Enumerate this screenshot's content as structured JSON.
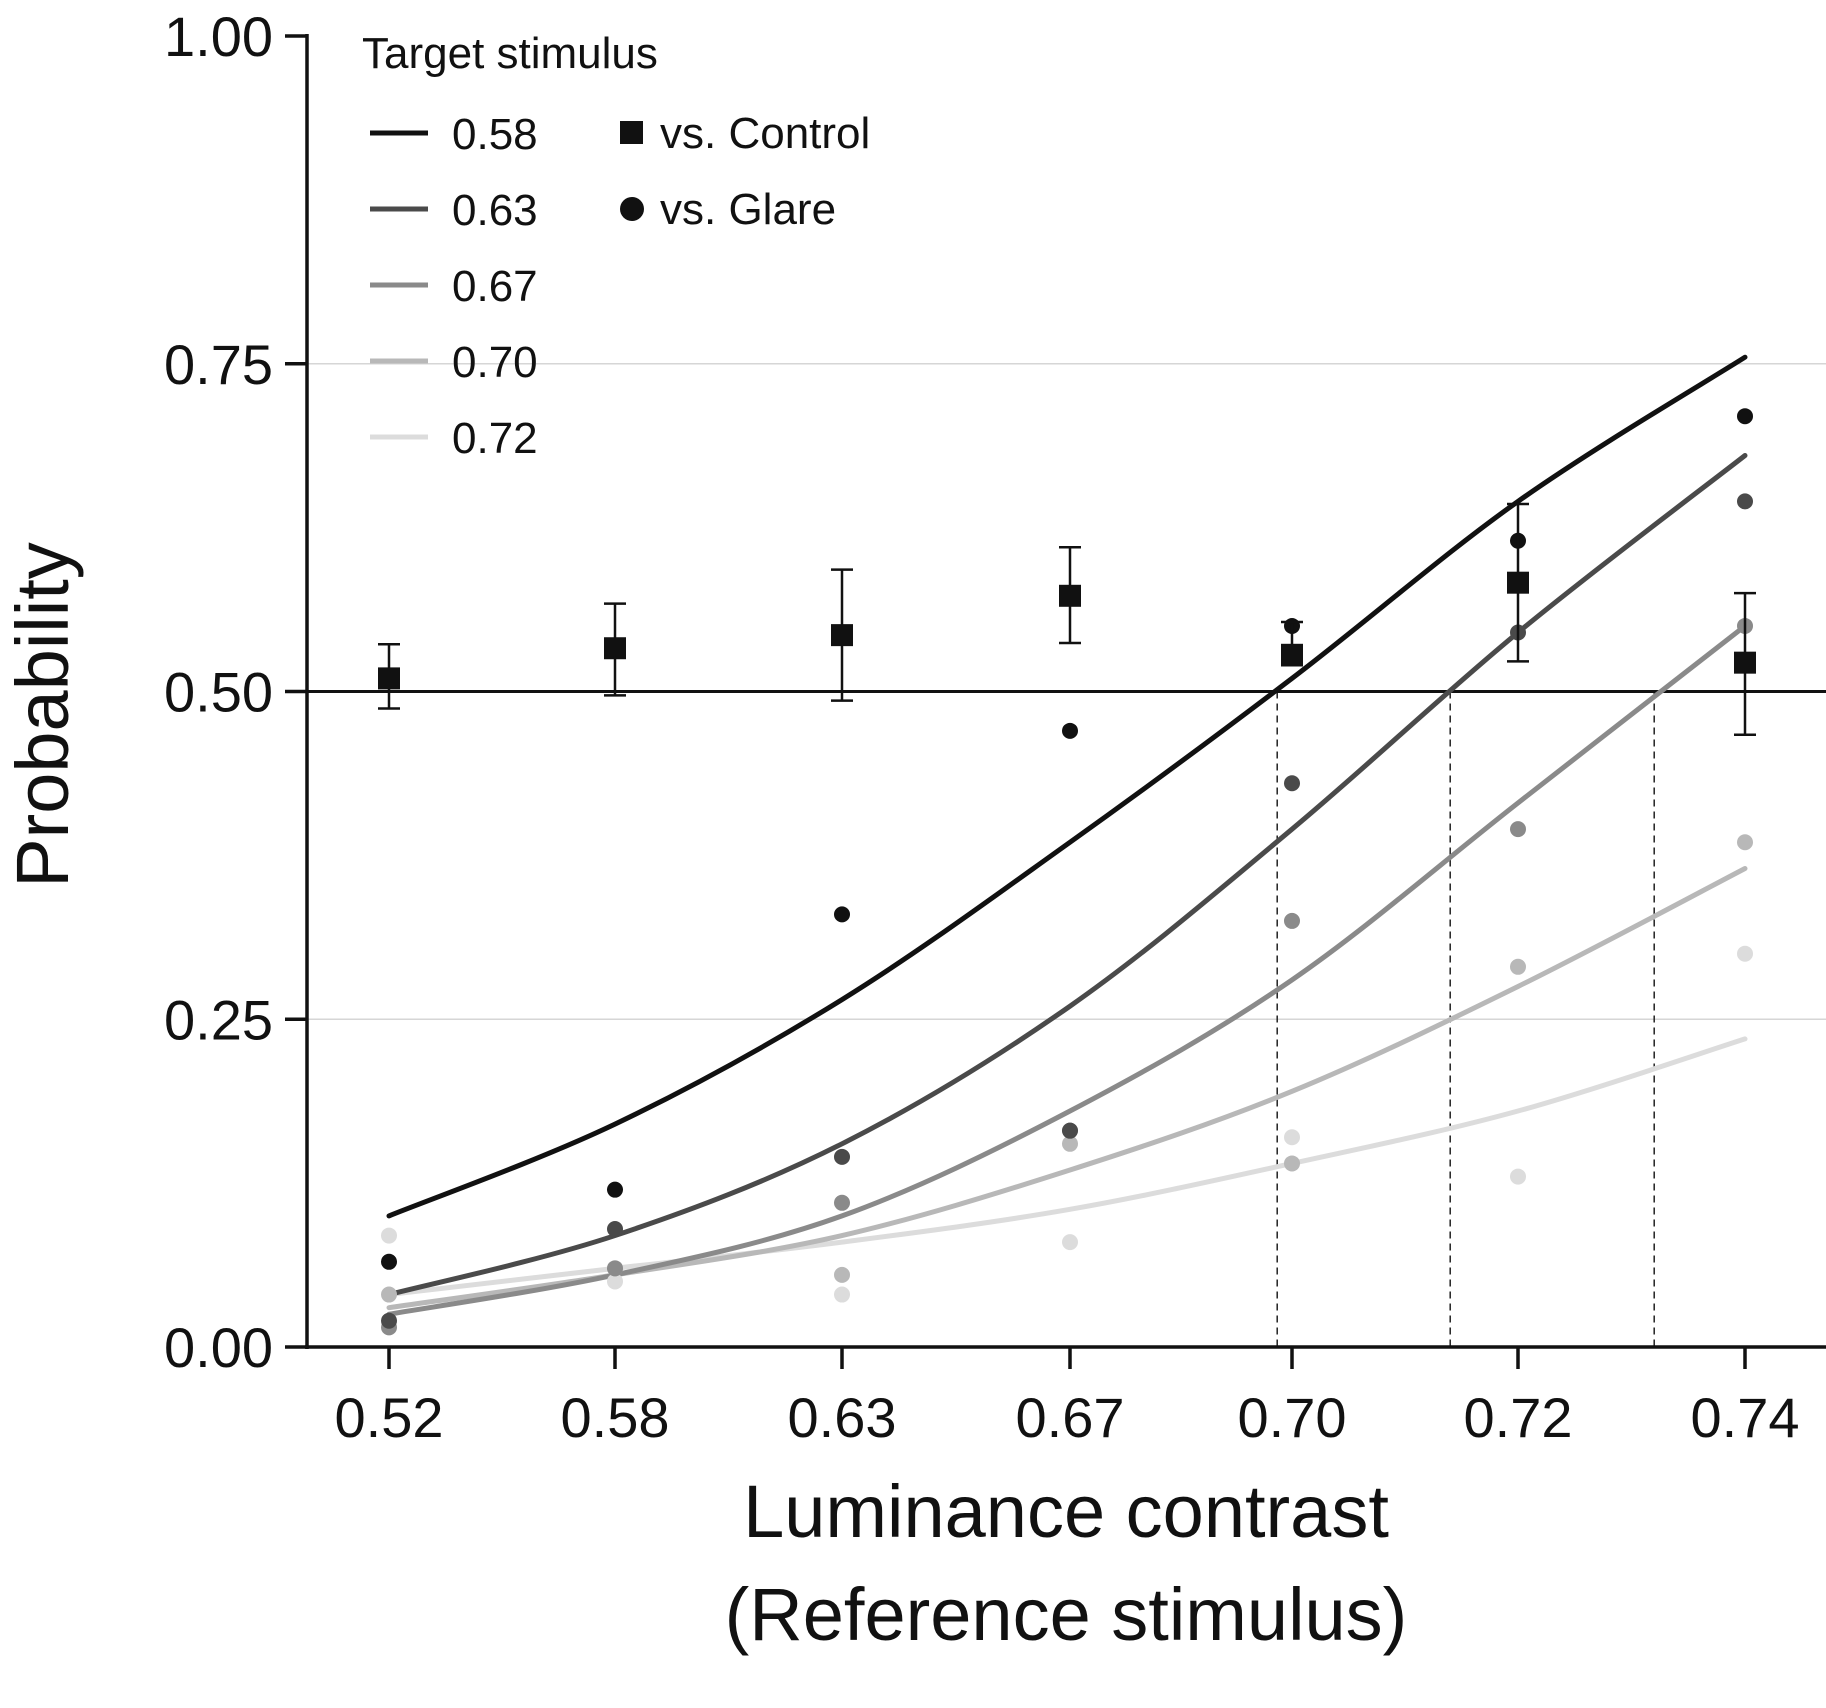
{
  "chart_data": {
    "type": "line",
    "xlabel": [
      "Luminance contrast",
      "(Reference stimulus)"
    ],
    "ylabel": "Probability",
    "ylim": [
      0,
      1
    ],
    "categories": [
      "0.52",
      "0.58",
      "0.63",
      "0.67",
      "0.70",
      "0.72",
      "0.74"
    ],
    "yticks": [
      "0.00",
      "0.25",
      "0.50",
      "0.75",
      "1.00"
    ],
    "grid": "horizontal light lines at 0.25 and 0.75",
    "reference_line": 0.5,
    "legend": {
      "title": "Target stimulus",
      "position": "top-left",
      "marker_entries": [
        "vs. Control",
        "vs. Glare"
      ]
    },
    "series": [
      {
        "name": "0.58",
        "color": "#111111",
        "curve": [
          0.1,
          0.17,
          0.265,
          0.385,
          0.51,
          0.645,
          0.755
        ],
        "glare_points": [
          0.065,
          0.12,
          0.33,
          0.47,
          0.55,
          0.615,
          0.71
        ]
      },
      {
        "name": "0.63",
        "color": "#4a4a4a",
        "curve": [
          0.04,
          0.085,
          0.155,
          0.26,
          0.395,
          0.545,
          0.68
        ],
        "glare_points": [
          0.02,
          0.09,
          0.145,
          0.165,
          0.43,
          0.545,
          0.645
        ]
      },
      {
        "name": "0.67",
        "color": "#8a8a8a",
        "curve": [
          0.025,
          0.055,
          0.1,
          0.18,
          0.28,
          0.415,
          0.55
        ],
        "glare_points": [
          0.015,
          0.06,
          0.11,
          0.165,
          0.325,
          0.395,
          0.55
        ]
      },
      {
        "name": "0.70",
        "color": "#b8b8b8",
        "curve": [
          0.03,
          0.055,
          0.085,
          0.135,
          0.195,
          0.275,
          0.365
        ],
        "glare_points": [
          0.04,
          0.06,
          0.055,
          0.155,
          0.14,
          0.29,
          0.385
        ]
      },
      {
        "name": "0.72",
        "color": "#dcdcdc",
        "curve": [
          0.04,
          0.06,
          0.08,
          0.105,
          0.14,
          0.18,
          0.235
        ],
        "glare_points": [
          0.085,
          0.05,
          0.04,
          0.08,
          0.16,
          0.13,
          0.3
        ]
      }
    ],
    "control": {
      "name": "vs. Control",
      "values": [
        0.51,
        0.533,
        0.543,
        0.573,
        0.528,
        0.583,
        0.522
      ],
      "error_low": [
        0.487,
        0.497,
        0.493,
        0.537,
        0.52,
        0.523,
        0.467
      ],
      "error_high": [
        0.536,
        0.567,
        0.593,
        0.61,
        0.553,
        0.643,
        0.575
      ]
    },
    "threshold_lines_x": [
      0.698,
      0.714,
      0.732
    ]
  }
}
